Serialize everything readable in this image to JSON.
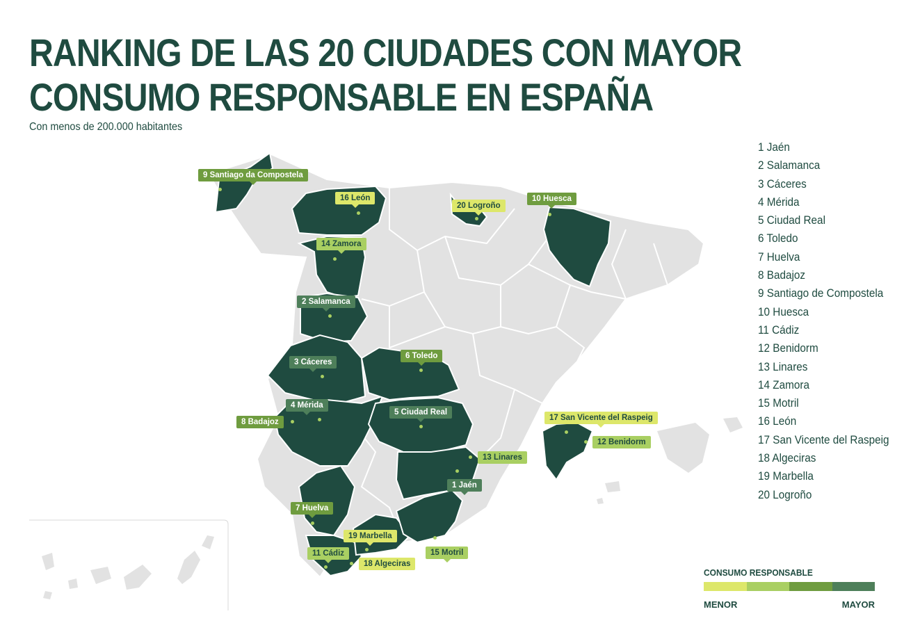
{
  "header": {
    "title_line1": "RANKING DE LAS 20 CIUDADES CON MAYOR",
    "title_line2": "CONSUMO RESPONSABLE EN ESPAÑA",
    "subtitle": "Con menos de 200.000 habitantes"
  },
  "ranking": [
    "1 Jaén",
    "2 Salamanca",
    "3 Cáceres",
    "4 Mérida",
    "5 Ciudad Real",
    "6 Toledo",
    "7 Huelva",
    "8 Badajoz",
    "9 Santiago de Compostela",
    "10 Huesca",
    "11 Cádiz",
    "12 Benidorm",
    "13 Linares",
    "14 Zamora",
    "15 Motril",
    "16 León",
    "17 San Vicente del Raspeig",
    "18 Algeciras",
    "19 Marbella",
    "20 Logroño"
  ],
  "city_labels": [
    {
      "id": "jaen",
      "label": "1 Jaén",
      "level": 4
    },
    {
      "id": "salamanca",
      "label": "2 Salamanca",
      "level": 4
    },
    {
      "id": "caceres",
      "label": "3 Cáceres",
      "level": 4
    },
    {
      "id": "merida",
      "label": "4 Mérida",
      "level": 4
    },
    {
      "id": "ciudad-real",
      "label": "5 Ciudad Real",
      "level": 4
    },
    {
      "id": "toledo",
      "label": "6 Toledo",
      "level": 3
    },
    {
      "id": "huelva",
      "label": "7 Huelva",
      "level": 3
    },
    {
      "id": "badajoz",
      "label": "8 Badajoz",
      "level": 3
    },
    {
      "id": "santiago",
      "label": "9 Santiago da Compostela",
      "level": 3
    },
    {
      "id": "huesca",
      "label": "10 Huesca",
      "level": 3
    },
    {
      "id": "cadiz",
      "label": "11 Cádiz",
      "level": 2
    },
    {
      "id": "benidorm",
      "label": "12 Benidorm",
      "level": 2
    },
    {
      "id": "linares",
      "label": "13 Linares",
      "level": 2
    },
    {
      "id": "zamora",
      "label": "14 Zamora",
      "level": 2
    },
    {
      "id": "motril",
      "label": "15 Motril",
      "level": 2
    },
    {
      "id": "leon",
      "label": "16 León",
      "level": 1
    },
    {
      "id": "san-vicente",
      "label": "17  San Vicente del Raspeig",
      "level": 1
    },
    {
      "id": "algeciras",
      "label": "18 Algeciras",
      "level": 1
    },
    {
      "id": "marbella",
      "label": "19 Marbella",
      "level": 1
    },
    {
      "id": "logrono",
      "label": "20 Logroño",
      "level": 1
    }
  ],
  "legend": {
    "title": "CONSUMO RESPONSABLE",
    "min_label": "MENOR",
    "max_label": "MAYOR",
    "scale_colors": [
      "#dde76a",
      "#a9cf62",
      "#6f9c3f",
      "#4e7f5a"
    ]
  },
  "colors": {
    "highlight_province": "#1f4b40",
    "other_province": "#e2e2e2",
    "border": "#ffffff",
    "text": "#1f4b40"
  }
}
